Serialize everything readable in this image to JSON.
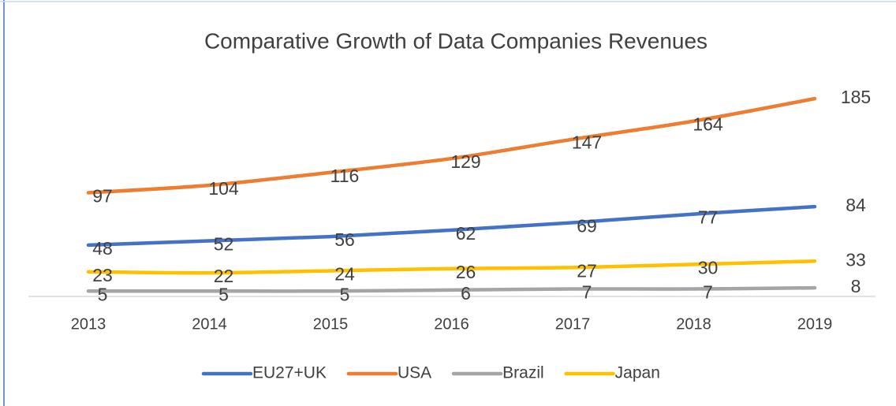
{
  "chart_data": {
    "type": "line",
    "title": "Comparative Growth of Data Companies Revenues",
    "categories": [
      "2013",
      "2014",
      "2015",
      "2016",
      "2017",
      "2018",
      "2019"
    ],
    "series": [
      {
        "name": "EU27+UK",
        "color": "#4472c4",
        "values": [
          48,
          52,
          56,
          62,
          69,
          77,
          84
        ]
      },
      {
        "name": "USA",
        "color": "#ed7d31",
        "values": [
          97,
          104,
          116,
          129,
          147,
          164,
          185
        ]
      },
      {
        "name": "Brazil",
        "color": "#a5a5a5",
        "values": [
          5,
          5,
          5,
          6,
          7,
          7,
          8
        ]
      },
      {
        "name": "Japan",
        "color": "#ffc000",
        "values": [
          23,
          22,
          24,
          26,
          27,
          30,
          33
        ]
      }
    ],
    "legend": "bottom"
  }
}
